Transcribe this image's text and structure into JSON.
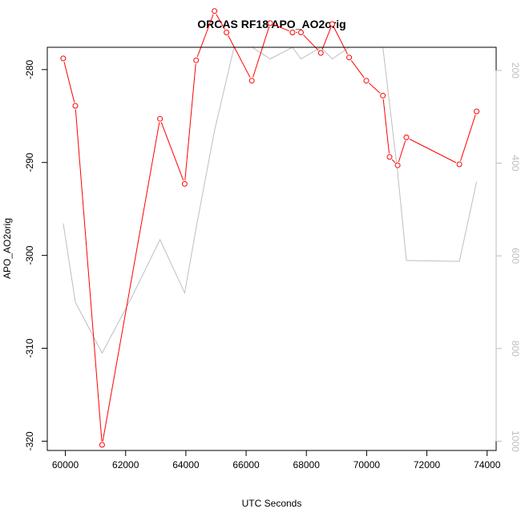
{
  "chart_data": {
    "type": "line",
    "title": "ORCAS RF18 APO_AO2orig",
    "xlabel": "UTC Seconds",
    "ylabel": "APO_AO2orig",
    "xlim": [
      59400,
      74300
    ],
    "ylim": [
      -321,
      -277.6
    ],
    "xticks": [
      60000,
      62000,
      64000,
      66000,
      68000,
      70000,
      72000,
      74000
    ],
    "yticks": [
      -320,
      -310,
      -300,
      -290,
      -280
    ],
    "y2lim": [
      1020,
      150
    ],
    "y2ticks": [
      200,
      400,
      600,
      800,
      1000
    ],
    "grid": false,
    "legend": "none",
    "colors": {
      "primary": "#ff0000",
      "secondary": "#bebebe"
    },
    "series": [
      {
        "axis": "left",
        "marker": "circle",
        "x": [
          59930,
          60330,
          61220,
          63140,
          63960,
          64340,
          64950,
          65350,
          66190,
          66800,
          67540,
          67820,
          68480,
          68860,
          69420,
          69990,
          70540,
          70760,
          71030,
          71320,
          73080,
          73650
        ],
        "values": [
          -278.8,
          -283.9,
          -320.4,
          -285.3,
          -292.3,
          -279.0,
          -273.7,
          -276.0,
          -281.2,
          -275.0,
          -276.0,
          -276.0,
          -278.2,
          -275.1,
          -278.7,
          -281.2,
          -282.8,
          -289.4,
          -290.3,
          -287.3,
          -290.2,
          -284.5
        ]
      },
      {
        "axis": "right",
        "marker": "none",
        "x": [
          59930,
          60330,
          61220,
          62200,
          63140,
          63960,
          64340,
          64950,
          65600,
          66200,
          66800,
          67540,
          67820,
          68480,
          68860,
          69420,
          69990,
          70540,
          71030,
          71320,
          73080,
          73650
        ],
        "values": [
          530,
          700,
          810,
          690,
          565,
          680,
          540,
          330,
          150,
          150,
          175,
          150,
          175,
          150,
          175,
          150,
          150,
          150,
          420,
          610,
          612,
          440
        ]
      }
    ]
  }
}
